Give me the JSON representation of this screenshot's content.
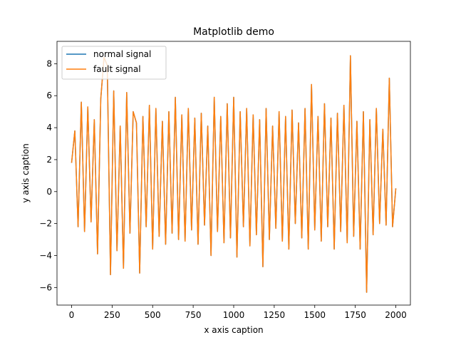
{
  "chart_data": {
    "type": "line",
    "title": "Matplotlib demo",
    "xlabel": "x axis caption",
    "ylabel": "y axis caption",
    "xlim": [
      -90,
      2090
    ],
    "ylim": [
      -7.1,
      9.4
    ],
    "xticks": [
      0,
      250,
      500,
      750,
      1000,
      1250,
      1500,
      1750,
      2000
    ],
    "yticks": [
      -6,
      -4,
      -2,
      0,
      2,
      4,
      6,
      8
    ],
    "grid": false,
    "legend_position": "top-left",
    "series": [
      {
        "name": "normal signal",
        "color": "#1f77b4",
        "x": [
          0,
          20,
          40,
          60,
          80,
          100,
          120,
          140,
          160,
          180,
          200,
          220,
          240,
          260,
          280,
          300,
          320,
          340,
          360,
          380,
          400,
          420,
          440,
          460,
          480,
          500,
          520,
          540,
          560,
          580,
          600,
          620,
          640,
          660,
          680,
          700,
          720,
          740,
          760,
          780,
          800,
          820,
          840,
          860,
          880,
          900,
          920,
          940,
          960,
          980,
          1000,
          1020,
          1040,
          1060,
          1080,
          1100,
          1120,
          1140,
          1160,
          1180,
          1200,
          1220,
          1240,
          1260,
          1280,
          1300,
          1320,
          1340,
          1360,
          1380,
          1400,
          1420,
          1440,
          1460,
          1480,
          1500,
          1520,
          1540,
          1560,
          1580,
          1600,
          1620,
          1640,
          1660,
          1680,
          1700,
          1720,
          1740,
          1760,
          1780,
          1800,
          1820,
          1840,
          1860,
          1880,
          1900,
          1920,
          1940,
          1960,
          1980,
          2000
        ],
        "y": [
          1.8,
          3.8,
          -2.2,
          5.6,
          -2.5,
          5.3,
          -1.9,
          4.5,
          -3.9,
          5.8,
          8.4,
          7.9,
          -5.2,
          6.3,
          -3.7,
          4.1,
          -4.8,
          6.2,
          -2.6,
          5.0,
          4.3,
          -5.1,
          4.7,
          -2.2,
          5.4,
          -3.6,
          5.2,
          -2.8,
          4.4,
          -3.3,
          5.0,
          -2.6,
          5.9,
          -3.0,
          4.8,
          -3.1,
          5.2,
          -2.4,
          4.6,
          -3.3,
          4.9,
          -2.1,
          4.1,
          -4.0,
          5.9,
          -2.5,
          4.7,
          -3.2,
          5.5,
          -2.9,
          5.9,
          -4.1,
          5.0,
          -2.2,
          5.2,
          -3.4,
          4.8,
          -2.7,
          4.5,
          -4.7,
          5.2,
          -3.0,
          4.1,
          -2.3,
          5.0,
          -3.1,
          4.7,
          -3.6,
          5.1,
          -2.0,
          4.3,
          -2.9,
          5.2,
          -3.6,
          6.7,
          -2.4,
          4.7,
          -3.1,
          5.5,
          -2.2,
          4.6,
          -3.6,
          4.9,
          -2.5,
          5.4,
          -3.2,
          8.5,
          -2.8,
          4.4,
          -3.6,
          5.0,
          -6.3,
          4.5,
          -2.7,
          5.2,
          -2.0,
          3.9,
          -2.1,
          7.1,
          -2.2,
          0.2
        ]
      },
      {
        "name": "fault signal",
        "color": "#ff7f0e",
        "x": [
          0,
          20,
          40,
          60,
          80,
          100,
          120,
          140,
          160,
          180,
          200,
          220,
          240,
          260,
          280,
          300,
          320,
          340,
          360,
          380,
          400,
          420,
          440,
          460,
          480,
          500,
          520,
          540,
          560,
          580,
          600,
          620,
          640,
          660,
          680,
          700,
          720,
          740,
          760,
          780,
          800,
          820,
          840,
          860,
          880,
          900,
          920,
          940,
          960,
          980,
          1000,
          1020,
          1040,
          1060,
          1080,
          1100,
          1120,
          1140,
          1160,
          1180,
          1200,
          1220,
          1240,
          1260,
          1280,
          1300,
          1320,
          1340,
          1360,
          1380,
          1400,
          1420,
          1440,
          1460,
          1480,
          1500,
          1520,
          1540,
          1560,
          1580,
          1600,
          1620,
          1640,
          1660,
          1680,
          1700,
          1720,
          1740,
          1760,
          1780,
          1800,
          1820,
          1840,
          1860,
          1880,
          1900,
          1920,
          1940,
          1960,
          1980,
          2000
        ],
        "y": [
          1.8,
          3.8,
          -2.2,
          5.6,
          -2.5,
          5.3,
          -1.9,
          4.5,
          -3.9,
          5.8,
          8.4,
          7.9,
          -5.2,
          6.3,
          -3.7,
          4.1,
          -4.8,
          6.2,
          -2.6,
          5.0,
          4.3,
          -5.1,
          4.7,
          -2.2,
          5.4,
          -3.6,
          5.2,
          -2.8,
          4.4,
          -3.3,
          5.0,
          -2.6,
          5.9,
          -3.0,
          4.8,
          -3.1,
          5.2,
          -2.4,
          4.6,
          -3.3,
          4.9,
          -2.1,
          4.1,
          -4.0,
          5.9,
          -2.5,
          4.7,
          -3.2,
          5.5,
          -2.9,
          5.9,
          -4.1,
          5.0,
          -2.2,
          5.2,
          -3.4,
          4.8,
          -2.7,
          4.5,
          -4.7,
          5.2,
          -3.0,
          4.1,
          -2.3,
          5.0,
          -3.1,
          4.7,
          -3.6,
          5.1,
          -2.0,
          4.3,
          -2.9,
          5.2,
          -3.6,
          6.7,
          -2.4,
          4.7,
          -3.1,
          5.5,
          -2.2,
          4.6,
          -3.6,
          4.9,
          -2.5,
          5.4,
          -3.2,
          8.5,
          -2.8,
          4.4,
          -3.6,
          5.0,
          -6.3,
          4.5,
          -2.7,
          5.2,
          -2.0,
          3.9,
          -2.1,
          7.1,
          -2.2,
          0.2
        ]
      }
    ]
  }
}
